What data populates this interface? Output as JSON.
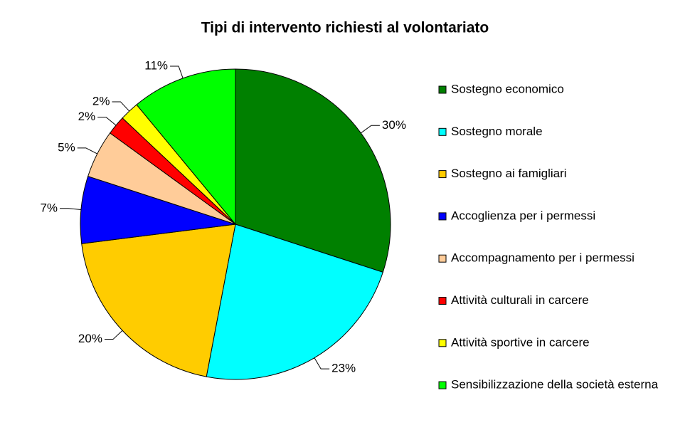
{
  "chart_data": {
    "type": "pie",
    "title": "Tipi di intervento richiesti al volontariato",
    "categories": [
      "Sostegno economico",
      "Sostegno morale",
      "Sostegno ai famigliari",
      "Accoglienza per i permessi",
      "Accompagnamento per i permessi",
      "Attività culturali in carcere",
      "Attività sportive in carcere",
      "Sensibilizzazione della società esterna"
    ],
    "values": [
      30,
      23,
      20,
      7,
      5,
      2,
      2,
      11
    ],
    "value_labels": [
      "30%",
      "23%",
      "20%",
      "7%",
      "5%",
      "2%",
      "2%",
      "11%"
    ],
    "colors": [
      "#008000",
      "#00ffff",
      "#ffcc00",
      "#0000ff",
      "#ffcc99",
      "#ff0000",
      "#ffff00",
      "#00ff00"
    ],
    "legend": "right"
  }
}
